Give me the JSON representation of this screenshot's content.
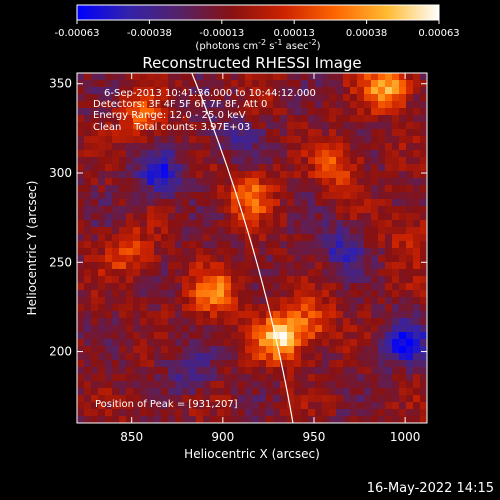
{
  "chart_data": {
    "type": "heatmap",
    "title": "Reconstructed RHESSI Image",
    "xlabel": "Heliocentric X (arcsec)",
    "ylabel": "Heliocentric Y (arcsec)",
    "xlim": [
      820,
      1012
    ],
    "ylim": [
      160,
      356
    ],
    "x_ticks": [
      850,
      900,
      950,
      1000
    ],
    "y_ticks": [
      200,
      250,
      300,
      350
    ],
    "colorbar": {
      "ticks": [
        "-0.00063",
        "-0.00038",
        "-0.00013",
        "0.00013",
        "0.00038",
        "0.00063"
      ],
      "range": [
        -0.00063,
        0.00063
      ],
      "unit_base": "(photons cm",
      "unit_exp1": "-2",
      "unit_mid1": " s",
      "unit_exp2": "-1",
      "unit_mid2": " asec",
      "unit_exp3": "-2",
      "unit_end": ")",
      "colors": [
        "#0000ff",
        "#3322aa",
        "#552266",
        "#881111",
        "#cc2200",
        "#ff6600",
        "#ffbb33",
        "#ffffff"
      ]
    },
    "info_lines": [
      "6-Sep-2013 10:41:36.000 to 10:44:12.000",
      "Detectors: 3F 4F 5F 6F 7F 8F, Att 0",
      "Energy Range: 12.0 - 25.0 keV",
      "Clean    Total counts: 3.97E+03"
    ],
    "peak_label": "Position of Peak = [931,207]",
    "peak": [
      931,
      207
    ],
    "hot_spots": [
      {
        "x": 931,
        "y": 207,
        "v": 0.00063
      },
      {
        "x": 895,
        "y": 233,
        "v": 0.00045
      },
      {
        "x": 915,
        "y": 287,
        "v": 0.0004
      },
      {
        "x": 990,
        "y": 348,
        "v": 0.00055
      },
      {
        "x": 963,
        "y": 304,
        "v": 0.00032
      },
      {
        "x": 849,
        "y": 255,
        "v": 0.00028
      },
      {
        "x": 855,
        "y": 332,
        "v": 0.0003
      },
      {
        "x": 948,
        "y": 217,
        "v": 0.00035
      },
      {
        "x": 1003,
        "y": 266,
        "v": 0.00022
      }
    ],
    "cold_spots": [
      {
        "x": 865,
        "y": 300,
        "v": -0.0004
      },
      {
        "x": 1000,
        "y": 205,
        "v": -0.00045
      },
      {
        "x": 965,
        "y": 258,
        "v": -0.0003
      },
      {
        "x": 882,
        "y": 190,
        "v": -0.00025
      },
      {
        "x": 905,
        "y": 320,
        "v": -0.0002
      }
    ]
  },
  "footer": {
    "date": "16-May-2022 14:15"
  }
}
